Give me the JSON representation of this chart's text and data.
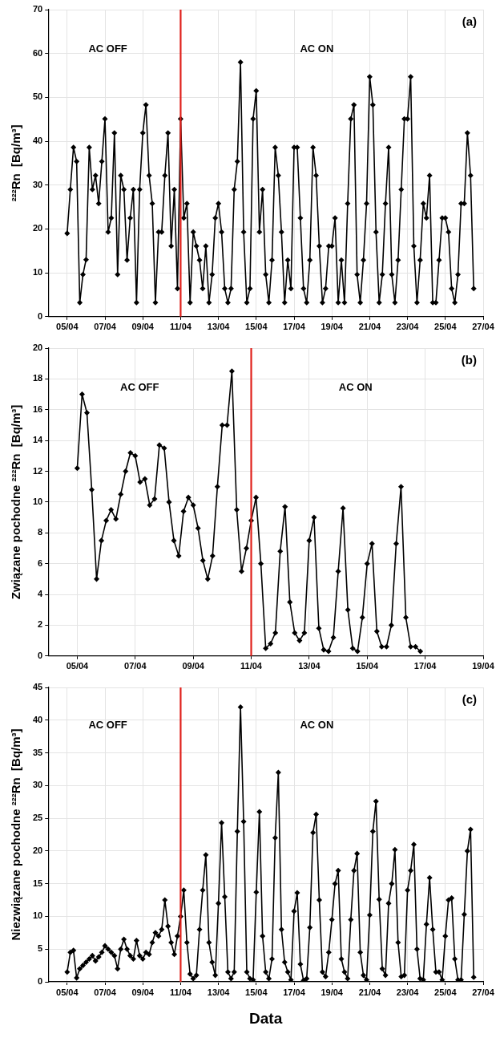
{
  "chart_data": [
    {
      "type": "line",
      "ylabel": "²²²Rn  [Bq/m³]",
      "xlim": [
        "--04-04",
        "--04-27"
      ],
      "ylim": [
        0,
        70
      ],
      "yticks": [
        0,
        10,
        20,
        30,
        40,
        50,
        60,
        70
      ],
      "xticks": [
        {
          "value": "--04-05",
          "label": "05/04"
        },
        {
          "value": "--04-07",
          "label": "07/04"
        },
        {
          "value": "--04-09",
          "label": "09/04"
        },
        {
          "value": "--04-11",
          "label": "11/04"
        },
        {
          "value": "--04-13",
          "label": "13/04"
        },
        {
          "value": "--04-15",
          "label": "15/04"
        },
        {
          "value": "--04-17",
          "label": "17/04"
        },
        {
          "value": "--04-19",
          "label": "19/04"
        },
        {
          "value": "--04-21",
          "label": "21/04"
        },
        {
          "value": "--04-23",
          "label": "23/04"
        },
        {
          "value": "--04-25",
          "label": "25/04"
        },
        {
          "value": "--04-27",
          "label": "27/04"
        }
      ],
      "grid": true,
      "legend": false,
      "marker": "diamond",
      "line_style": "solid",
      "ref_lines": [
        {
          "axis": "x",
          "value": "--04-11",
          "color": "#e0201b"
        }
      ],
      "annotations": [
        "AC OFF",
        "AC ON",
        "(a)"
      ],
      "series": [
        {
          "color": "#000000",
          "x": [
            "--04-05T00:00",
            "--04-05T04:00",
            "--04-05T08:00",
            "--04-05T12:00",
            "--04-05T16:00",
            "--04-05T20:00",
            "--04-06T00:00",
            "--04-06T04:00",
            "--04-06T08:00",
            "--04-06T12:00",
            "--04-06T16:00",
            "--04-06T20:00",
            "--04-07T00:00",
            "--04-07T04:00",
            "--04-07T08:00",
            "--04-07T12:00",
            "--04-07T16:00",
            "--04-07T20:00",
            "--04-08T00:00",
            "--04-08T04:00",
            "--04-08T08:00",
            "--04-08T12:00",
            "--04-08T16:00",
            "--04-08T20:00",
            "--04-09T00:00",
            "--04-09T04:00",
            "--04-09T08:00",
            "--04-09T12:00",
            "--04-09T16:00",
            "--04-09T20:00",
            "--04-10T00:00",
            "--04-10T04:00",
            "--04-10T08:00",
            "--04-10T12:00",
            "--04-10T16:00",
            "--04-10T20:00",
            "--04-11T00:00",
            "--04-11T04:00",
            "--04-11T08:00",
            "--04-11T12:00",
            "--04-11T16:00",
            "--04-11T20:00",
            "--04-12T00:00",
            "--04-12T04:00",
            "--04-12T08:00",
            "--04-12T12:00",
            "--04-12T16:00",
            "--04-12T20:00",
            "--04-13T00:00",
            "--04-13T04:00",
            "--04-13T08:00",
            "--04-13T12:00",
            "--04-13T16:00",
            "--04-13T20:00",
            "--04-14T00:00",
            "--04-14T04:00",
            "--04-14T08:00",
            "--04-14T12:00",
            "--04-14T16:00",
            "--04-14T20:00",
            "--04-15T00:00",
            "--04-15T04:00",
            "--04-15T08:00",
            "--04-15T12:00",
            "--04-15T16:00",
            "--04-15T20:00",
            "--04-16T00:00",
            "--04-16T04:00",
            "--04-16T08:00",
            "--04-16T12:00",
            "--04-16T16:00",
            "--04-16T20:00",
            "--04-17T00:00",
            "--04-17T04:00",
            "--04-17T08:00",
            "--04-17T12:00",
            "--04-17T16:00",
            "--04-17T20:00",
            "--04-18T00:00",
            "--04-18T04:00",
            "--04-18T08:00",
            "--04-18T12:00",
            "--04-18T16:00",
            "--04-18T20:00",
            "--04-19T00:00",
            "--04-19T04:00",
            "--04-19T08:00",
            "--04-19T12:00",
            "--04-19T16:00",
            "--04-19T20:00",
            "--04-20T00:00",
            "--04-20T04:00",
            "--04-20T08:00",
            "--04-20T12:00",
            "--04-20T16:00",
            "--04-20T20:00",
            "--04-21T00:00",
            "--04-21T04:00",
            "--04-21T08:00",
            "--04-21T12:00",
            "--04-21T16:00",
            "--04-21T20:00",
            "--04-22T00:00",
            "--04-22T04:00",
            "--04-22T08:00",
            "--04-22T12:00",
            "--04-22T16:00",
            "--04-22T20:00",
            "--04-23T00:00",
            "--04-23T04:00",
            "--04-23T08:00",
            "--04-23T12:00",
            "--04-23T16:00",
            "--04-23T20:00",
            "--04-24T00:00",
            "--04-24T04:00",
            "--04-24T08:00",
            "--04-24T12:00",
            "--04-24T16:00",
            "--04-24T20:00",
            "--04-25T00:00",
            "--04-25T04:00",
            "--04-25T08:00",
            "--04-25T12:00",
            "--04-25T16:00",
            "--04-25T20:00",
            "--04-26T00:00",
            "--04-26T04:00",
            "--04-26T08:00",
            "--04-26T12:00"
          ],
          "values": [
            19,
            29,
            38.6,
            35.4,
            3.2,
            9.6,
            13,
            38.6,
            29,
            32.2,
            25.8,
            35.4,
            45.1,
            19.3,
            22.5,
            41.9,
            9.6,
            32.2,
            29,
            12.9,
            22.5,
            29,
            3.2,
            29,
            41.9,
            48.3,
            32.2,
            25.8,
            3.2,
            19.3,
            19.3,
            32.2,
            41.9,
            16.1,
            29,
            6.4,
            45.1,
            22.5,
            25.8,
            3.2,
            19.3,
            16.1,
            12.9,
            6.4,
            16.1,
            3.2,
            9.6,
            22.5,
            25.8,
            19.3,
            6.4,
            3.2,
            6.4,
            29,
            35.4,
            58,
            19.3,
            3.2,
            6.4,
            45.1,
            51.5,
            19.3,
            29,
            9.6,
            3.2,
            12.9,
            38.6,
            32.2,
            19.3,
            3.2,
            12.9,
            6.4,
            38.6,
            38.6,
            22.5,
            6.4,
            3.2,
            12.9,
            38.6,
            32.2,
            16.1,
            3.2,
            6.4,
            16.1,
            16.1,
            22.5,
            3.2,
            12.9,
            3.2,
            25.8,
            45.1,
            48.3,
            9.6,
            3.2,
            12.9,
            25.8,
            54.7,
            48.3,
            19.3,
            3.2,
            9.6,
            25.8,
            38.6,
            9.6,
            3.2,
            12.9,
            29,
            45.1,
            45.1,
            54.7,
            16.1,
            3.2,
            12.9,
            25.8,
            22.5,
            32.2,
            3.2,
            3.2,
            12.9,
            22.5,
            22.5,
            19.3,
            6.4,
            3.2,
            9.6,
            25.8,
            25.8,
            41.9,
            32.2,
            6.4
          ]
        }
      ]
    },
    {
      "type": "line",
      "ylabel": "Związane pochodne ²²²Rn  [Bq/m³]",
      "xlim": [
        "--04-04",
        "--04-19"
      ],
      "ylim": [
        0,
        20
      ],
      "yticks": [
        0,
        2,
        4,
        6,
        8,
        10,
        12,
        14,
        16,
        18,
        20
      ],
      "xticks": [
        {
          "value": "--04-05",
          "label": "05/04"
        },
        {
          "value": "--04-07",
          "label": "07/04"
        },
        {
          "value": "--04-09",
          "label": "09/04"
        },
        {
          "value": "--04-11",
          "label": "11/04"
        },
        {
          "value": "--04-13",
          "label": "13/04"
        },
        {
          "value": "--04-15",
          "label": "15/04"
        },
        {
          "value": "--04-17",
          "label": "17/04"
        },
        {
          "value": "--04-19",
          "label": "19/04"
        }
      ],
      "grid": true,
      "legend": false,
      "marker": "diamond",
      "line_style": "solid",
      "ref_lines": [
        {
          "axis": "x",
          "value": "--04-11",
          "color": "#e0201b"
        }
      ],
      "annotations": [
        "AC OFF",
        "AC ON",
        "(b)"
      ],
      "series": [
        {
          "color": "#000000",
          "x": [
            "--04-05T00:00",
            "--04-05T04:00",
            "--04-05T08:00",
            "--04-05T12:00",
            "--04-05T16:00",
            "--04-05T20:00",
            "--04-06T00:00",
            "--04-06T04:00",
            "--04-06T08:00",
            "--04-06T12:00",
            "--04-06T16:00",
            "--04-06T20:00",
            "--04-07T00:00",
            "--04-07T04:00",
            "--04-07T08:00",
            "--04-07T12:00",
            "--04-07T16:00",
            "--04-07T20:00",
            "--04-08T00:00",
            "--04-08T04:00",
            "--04-08T08:00",
            "--04-08T12:00",
            "--04-08T16:00",
            "--04-08T20:00",
            "--04-09T00:00",
            "--04-09T04:00",
            "--04-09T08:00",
            "--04-09T12:00",
            "--04-09T16:00",
            "--04-09T20:00",
            "--04-10T00:00",
            "--04-10T04:00",
            "--04-10T08:00",
            "--04-10T12:00",
            "--04-10T16:00",
            "--04-10T20:00",
            "--04-11T00:00",
            "--04-11T04:00",
            "--04-11T08:00",
            "--04-11T12:00",
            "--04-11T16:00",
            "--04-11T20:00",
            "--04-12T00:00",
            "--04-12T04:00",
            "--04-12T08:00",
            "--04-12T12:00",
            "--04-12T16:00",
            "--04-12T20:00",
            "--04-13T00:00",
            "--04-13T04:00",
            "--04-13T08:00",
            "--04-13T12:00",
            "--04-13T16:00",
            "--04-13T20:00",
            "--04-14T00:00",
            "--04-14T04:00",
            "--04-14T08:00",
            "--04-14T12:00",
            "--04-14T16:00",
            "--04-14T20:00",
            "--04-15T00:00",
            "--04-15T04:00",
            "--04-15T08:00",
            "--04-15T12:00",
            "--04-15T16:00",
            "--04-15T20:00",
            "--04-16T00:00",
            "--04-16T04:00",
            "--04-16T08:00",
            "--04-16T12:00",
            "--04-16T16:00",
            "--04-16T20:00"
          ],
          "values": [
            12.2,
            17,
            15.8,
            10.8,
            5,
            7.5,
            8.8,
            9.5,
            8.9,
            10.5,
            12,
            13.2,
            13,
            11.3,
            11.5,
            9.8,
            10.2,
            13.7,
            13.5,
            10,
            7.5,
            6.5,
            9.4,
            10.3,
            9.8,
            8.3,
            6.2,
            5,
            6.5,
            11,
            15,
            15,
            18.5,
            9.5,
            5.5,
            7,
            8.8,
            10.3,
            6,
            0.5,
            0.8,
            1.5,
            6.8,
            9.7,
            3.5,
            1.5,
            1,
            1.5,
            7.5,
            9,
            1.8,
            0.4,
            0.3,
            1.2,
            5.5,
            9.6,
            3,
            0.5,
            0.3,
            2.5,
            6,
            7.3,
            1.6,
            0.6,
            0.6,
            2,
            7.3,
            11,
            2.5,
            0.6,
            0.6,
            0.3
          ]
        }
      ]
    },
    {
      "type": "line",
      "ylabel": "Niezwiązane pochodne ²²²Rn  [Bq/m³]",
      "xlabel": "Data",
      "xlim": [
        "--04-04",
        "--04-27"
      ],
      "ylim": [
        0,
        45
      ],
      "yticks": [
        0,
        5,
        10,
        15,
        20,
        25,
        30,
        35,
        40,
        45
      ],
      "xticks": [
        {
          "value": "--04-05",
          "label": "05/04"
        },
        {
          "value": "--04-07",
          "label": "07/04"
        },
        {
          "value": "--04-09",
          "label": "09/04"
        },
        {
          "value": "--04-11",
          "label": "11/04"
        },
        {
          "value": "--04-13",
          "label": "13/04"
        },
        {
          "value": "--04-15",
          "label": "15/04"
        },
        {
          "value": "--04-17",
          "label": "17/04"
        },
        {
          "value": "--04-19",
          "label": "19/04"
        },
        {
          "value": "--04-21",
          "label": "21/04"
        },
        {
          "value": "--04-23",
          "label": "23/04"
        },
        {
          "value": "--04-25",
          "label": "25/04"
        },
        {
          "value": "--04-27",
          "label": "27/04"
        }
      ],
      "grid": true,
      "legend": false,
      "marker": "diamond",
      "line_style": "solid",
      "ref_lines": [
        {
          "axis": "x",
          "value": "--04-11",
          "color": "#e0201b"
        }
      ],
      "annotations": [
        "AC OFF",
        "AC ON",
        "(c)"
      ],
      "series": [
        {
          "color": "#000000",
          "x": [
            "--04-05T00:00",
            "--04-05T04:00",
            "--04-05T08:00",
            "--04-05T12:00",
            "--04-05T16:00",
            "--04-05T20:00",
            "--04-06T00:00",
            "--04-06T04:00",
            "--04-06T08:00",
            "--04-06T12:00",
            "--04-06T16:00",
            "--04-06T20:00",
            "--04-07T00:00",
            "--04-07T04:00",
            "--04-07T08:00",
            "--04-07T12:00",
            "--04-07T16:00",
            "--04-07T20:00",
            "--04-08T00:00",
            "--04-08T04:00",
            "--04-08T08:00",
            "--04-08T12:00",
            "--04-08T16:00",
            "--04-08T20:00",
            "--04-09T00:00",
            "--04-09T04:00",
            "--04-09T08:00",
            "--04-09T12:00",
            "--04-09T16:00",
            "--04-09T20:00",
            "--04-10T00:00",
            "--04-10T04:00",
            "--04-10T08:00",
            "--04-10T12:00",
            "--04-10T16:00",
            "--04-10T20:00",
            "--04-11T00:00",
            "--04-11T04:00",
            "--04-11T08:00",
            "--04-11T12:00",
            "--04-11T16:00",
            "--04-11T20:00",
            "--04-12T00:00",
            "--04-12T04:00",
            "--04-12T08:00",
            "--04-12T12:00",
            "--04-12T16:00",
            "--04-12T20:00",
            "--04-13T00:00",
            "--04-13T04:00",
            "--04-13T08:00",
            "--04-13T12:00",
            "--04-13T16:00",
            "--04-13T20:00",
            "--04-14T00:00",
            "--04-14T04:00",
            "--04-14T08:00",
            "--04-14T12:00",
            "--04-14T16:00",
            "--04-14T20:00",
            "--04-15T00:00",
            "--04-15T04:00",
            "--04-15T08:00",
            "--04-15T12:00",
            "--04-15T16:00",
            "--04-15T20:00",
            "--04-16T00:00",
            "--04-16T04:00",
            "--04-16T08:00",
            "--04-16T12:00",
            "--04-16T16:00",
            "--04-16T20:00",
            "--04-17T00:00",
            "--04-17T04:00",
            "--04-17T08:00",
            "--04-17T12:00",
            "--04-17T16:00",
            "--04-17T20:00",
            "--04-18T00:00",
            "--04-18T04:00",
            "--04-18T08:00",
            "--04-18T12:00",
            "--04-18T16:00",
            "--04-18T20:00",
            "--04-19T00:00",
            "--04-19T04:00",
            "--04-19T08:00",
            "--04-19T12:00",
            "--04-19T16:00",
            "--04-19T20:00",
            "--04-20T00:00",
            "--04-20T04:00",
            "--04-20T08:00",
            "--04-20T12:00",
            "--04-20T16:00",
            "--04-20T20:00",
            "--04-21T00:00",
            "--04-21T04:00",
            "--04-21T08:00",
            "--04-21T12:00",
            "--04-21T16:00",
            "--04-21T20:00",
            "--04-22T00:00",
            "--04-22T04:00",
            "--04-22T08:00",
            "--04-22T12:00",
            "--04-22T16:00",
            "--04-22T20:00",
            "--04-23T00:00",
            "--04-23T04:00",
            "--04-23T08:00",
            "--04-23T12:00",
            "--04-23T16:00",
            "--04-23T20:00",
            "--04-24T00:00",
            "--04-24T04:00",
            "--04-24T08:00",
            "--04-24T12:00",
            "--04-24T16:00",
            "--04-24T20:00",
            "--04-25T00:00",
            "--04-25T04:00",
            "--04-25T08:00",
            "--04-25T12:00",
            "--04-25T16:00",
            "--04-25T20:00",
            "--04-26T00:00",
            "--04-26T04:00",
            "--04-26T08:00",
            "--04-26T12:00"
          ],
          "values": [
            1.5,
            4.5,
            4.8,
            0.6,
            2,
            2.5,
            3,
            3.5,
            4,
            3.2,
            3.8,
            4.5,
            5.5,
            5,
            4.5,
            4,
            2,
            5,
            6.5,
            5,
            4,
            3.5,
            6.3,
            4,
            3.5,
            4.5,
            4.2,
            6,
            7.5,
            7,
            8,
            12.5,
            8.5,
            6,
            4.2,
            7,
            10,
            14,
            6,
            1.2,
            0.5,
            1,
            8,
            14,
            19.4,
            6,
            3,
            1,
            12,
            24.3,
            13,
            1.5,
            0.5,
            1.5,
            23,
            42,
            24.5,
            1.5,
            0.5,
            0.3,
            13.7,
            26,
            7,
            1.5,
            0.5,
            3.5,
            22,
            32,
            8,
            3,
            1.5,
            0.3,
            10.8,
            13.6,
            2.7,
            0.2,
            0.5,
            8.3,
            22.8,
            25.6,
            12.5,
            1.5,
            0.8,
            4.5,
            9.5,
            15,
            17,
            3.5,
            1.5,
            0.5,
            9.5,
            17,
            19.6,
            4.5,
            1,
            0.3,
            10.2,
            23,
            27.6,
            12.6,
            2,
            1,
            12,
            15,
            20.2,
            6,
            0.8,
            1,
            14,
            17,
            21,
            5,
            0.5,
            0.3,
            8.8,
            15.9,
            8,
            1.5,
            1.5,
            0.3,
            7,
            12.5,
            12.8,
            3.5,
            0.3,
            0.3,
            10.3,
            20,
            23.3,
            0.7
          ]
        }
      ]
    }
  ]
}
